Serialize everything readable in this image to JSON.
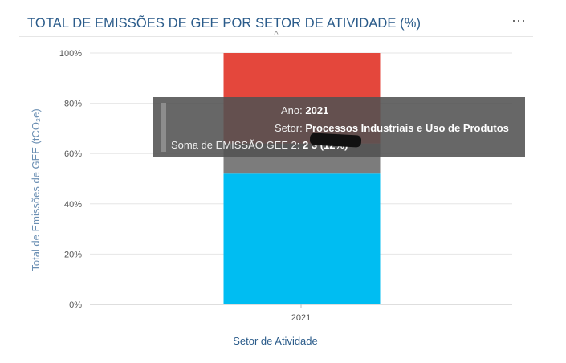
{
  "header": {
    "title": "TOTAL DE EMISSÕES DE GEE POR SETOR DE ATIVIDADE (%)",
    "menu_icon": "more-horizontal-icon",
    "menu_label": "···",
    "collapse_icon": "chevron-up-icon",
    "collapse_label": "^"
  },
  "chart_data": {
    "type": "bar",
    "stacked": true,
    "normalized": true,
    "categories": [
      "2021"
    ],
    "series": [
      {
        "color": "#00bdf2",
        "values": [
          52
        ]
      },
      {
        "color": "#7c7c7c",
        "values": [
          12
        ]
      },
      {
        "color": "#e4473c",
        "values": [
          36
        ]
      }
    ],
    "xlabel": "Setor de Atividade",
    "ylabel": "Total de Emissões de GEE (tCO₂e)",
    "ylim": [
      0,
      100
    ],
    "yticks": [
      "0%",
      "20%",
      "40%",
      "60%",
      "80%",
      "100%"
    ],
    "grid": true
  },
  "tooltip": {
    "rows": [
      {
        "key": "Ano:",
        "value": "2021"
      },
      {
        "key": "Setor:",
        "value": "Processos Industriais e Uso de Produtos"
      },
      {
        "key": "Soma de EMISSÃO GEE 2:",
        "value": "2        3 (12%)"
      }
    ]
  }
}
